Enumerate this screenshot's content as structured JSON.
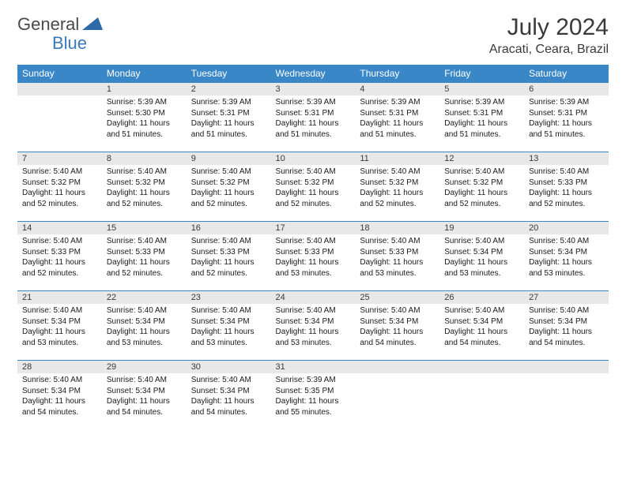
{
  "logo": {
    "part1": "General",
    "part2": "Blue"
  },
  "title": "July 2024",
  "location": "Aracati, Ceara, Brazil",
  "colors": {
    "header_bg": "#3a87c8",
    "header_text": "#ffffff",
    "daynum_bg": "#e8e8e8",
    "border": "#3a87c8",
    "logo_gray": "#4a4a4a",
    "logo_blue": "#3a7ab8"
  },
  "weekdays": [
    "Sunday",
    "Monday",
    "Tuesday",
    "Wednesday",
    "Thursday",
    "Friday",
    "Saturday"
  ],
  "weeks": [
    [
      {
        "day": "",
        "lines": []
      },
      {
        "day": "1",
        "lines": [
          "Sunrise: 5:39 AM",
          "Sunset: 5:30 PM",
          "Daylight: 11 hours and 51 minutes."
        ]
      },
      {
        "day": "2",
        "lines": [
          "Sunrise: 5:39 AM",
          "Sunset: 5:31 PM",
          "Daylight: 11 hours and 51 minutes."
        ]
      },
      {
        "day": "3",
        "lines": [
          "Sunrise: 5:39 AM",
          "Sunset: 5:31 PM",
          "Daylight: 11 hours and 51 minutes."
        ]
      },
      {
        "day": "4",
        "lines": [
          "Sunrise: 5:39 AM",
          "Sunset: 5:31 PM",
          "Daylight: 11 hours and 51 minutes."
        ]
      },
      {
        "day": "5",
        "lines": [
          "Sunrise: 5:39 AM",
          "Sunset: 5:31 PM",
          "Daylight: 11 hours and 51 minutes."
        ]
      },
      {
        "day": "6",
        "lines": [
          "Sunrise: 5:39 AM",
          "Sunset: 5:31 PM",
          "Daylight: 11 hours and 51 minutes."
        ]
      }
    ],
    [
      {
        "day": "7",
        "lines": [
          "Sunrise: 5:40 AM",
          "Sunset: 5:32 PM",
          "Daylight: 11 hours and 52 minutes."
        ]
      },
      {
        "day": "8",
        "lines": [
          "Sunrise: 5:40 AM",
          "Sunset: 5:32 PM",
          "Daylight: 11 hours and 52 minutes."
        ]
      },
      {
        "day": "9",
        "lines": [
          "Sunrise: 5:40 AM",
          "Sunset: 5:32 PM",
          "Daylight: 11 hours and 52 minutes."
        ]
      },
      {
        "day": "10",
        "lines": [
          "Sunrise: 5:40 AM",
          "Sunset: 5:32 PM",
          "Daylight: 11 hours and 52 minutes."
        ]
      },
      {
        "day": "11",
        "lines": [
          "Sunrise: 5:40 AM",
          "Sunset: 5:32 PM",
          "Daylight: 11 hours and 52 minutes."
        ]
      },
      {
        "day": "12",
        "lines": [
          "Sunrise: 5:40 AM",
          "Sunset: 5:32 PM",
          "Daylight: 11 hours and 52 minutes."
        ]
      },
      {
        "day": "13",
        "lines": [
          "Sunrise: 5:40 AM",
          "Sunset: 5:33 PM",
          "Daylight: 11 hours and 52 minutes."
        ]
      }
    ],
    [
      {
        "day": "14",
        "lines": [
          "Sunrise: 5:40 AM",
          "Sunset: 5:33 PM",
          "Daylight: 11 hours and 52 minutes."
        ]
      },
      {
        "day": "15",
        "lines": [
          "Sunrise: 5:40 AM",
          "Sunset: 5:33 PM",
          "Daylight: 11 hours and 52 minutes."
        ]
      },
      {
        "day": "16",
        "lines": [
          "Sunrise: 5:40 AM",
          "Sunset: 5:33 PM",
          "Daylight: 11 hours and 52 minutes."
        ]
      },
      {
        "day": "17",
        "lines": [
          "Sunrise: 5:40 AM",
          "Sunset: 5:33 PM",
          "Daylight: 11 hours and 53 minutes."
        ]
      },
      {
        "day": "18",
        "lines": [
          "Sunrise: 5:40 AM",
          "Sunset: 5:33 PM",
          "Daylight: 11 hours and 53 minutes."
        ]
      },
      {
        "day": "19",
        "lines": [
          "Sunrise: 5:40 AM",
          "Sunset: 5:34 PM",
          "Daylight: 11 hours and 53 minutes."
        ]
      },
      {
        "day": "20",
        "lines": [
          "Sunrise: 5:40 AM",
          "Sunset: 5:34 PM",
          "Daylight: 11 hours and 53 minutes."
        ]
      }
    ],
    [
      {
        "day": "21",
        "lines": [
          "Sunrise: 5:40 AM",
          "Sunset: 5:34 PM",
          "Daylight: 11 hours and 53 minutes."
        ]
      },
      {
        "day": "22",
        "lines": [
          "Sunrise: 5:40 AM",
          "Sunset: 5:34 PM",
          "Daylight: 11 hours and 53 minutes."
        ]
      },
      {
        "day": "23",
        "lines": [
          "Sunrise: 5:40 AM",
          "Sunset: 5:34 PM",
          "Daylight: 11 hours and 53 minutes."
        ]
      },
      {
        "day": "24",
        "lines": [
          "Sunrise: 5:40 AM",
          "Sunset: 5:34 PM",
          "Daylight: 11 hours and 53 minutes."
        ]
      },
      {
        "day": "25",
        "lines": [
          "Sunrise: 5:40 AM",
          "Sunset: 5:34 PM",
          "Daylight: 11 hours and 54 minutes."
        ]
      },
      {
        "day": "26",
        "lines": [
          "Sunrise: 5:40 AM",
          "Sunset: 5:34 PM",
          "Daylight: 11 hours and 54 minutes."
        ]
      },
      {
        "day": "27",
        "lines": [
          "Sunrise: 5:40 AM",
          "Sunset: 5:34 PM",
          "Daylight: 11 hours and 54 minutes."
        ]
      }
    ],
    [
      {
        "day": "28",
        "lines": [
          "Sunrise: 5:40 AM",
          "Sunset: 5:34 PM",
          "Daylight: 11 hours and 54 minutes."
        ]
      },
      {
        "day": "29",
        "lines": [
          "Sunrise: 5:40 AM",
          "Sunset: 5:34 PM",
          "Daylight: 11 hours and 54 minutes."
        ]
      },
      {
        "day": "30",
        "lines": [
          "Sunrise: 5:40 AM",
          "Sunset: 5:34 PM",
          "Daylight: 11 hours and 54 minutes."
        ]
      },
      {
        "day": "31",
        "lines": [
          "Sunrise: 5:39 AM",
          "Sunset: 5:35 PM",
          "Daylight: 11 hours and 55 minutes."
        ]
      },
      {
        "day": "",
        "lines": []
      },
      {
        "day": "",
        "lines": []
      },
      {
        "day": "",
        "lines": []
      }
    ]
  ]
}
